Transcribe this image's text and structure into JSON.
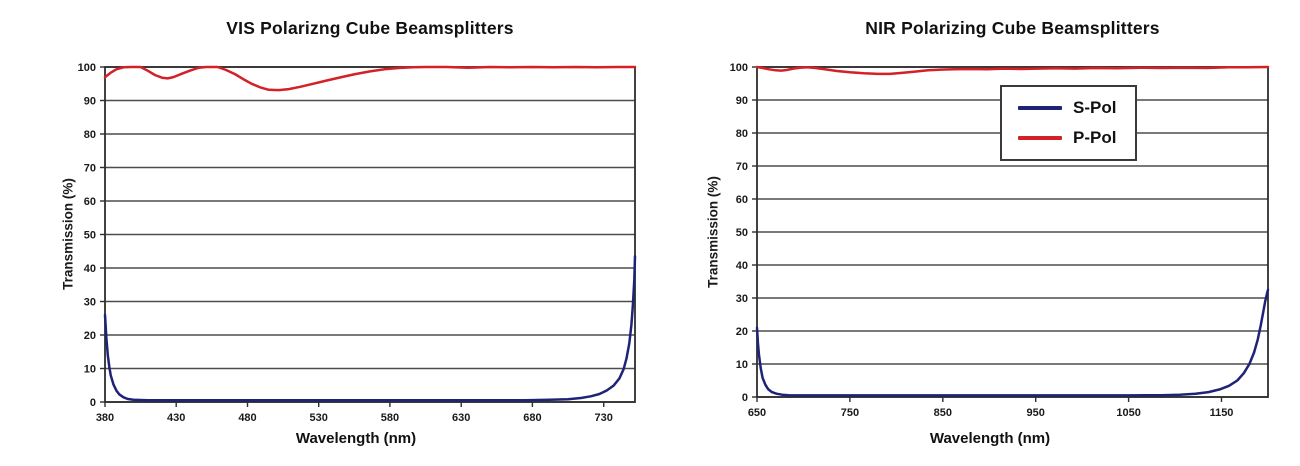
{
  "page": {
    "background": "#ffffff"
  },
  "chart_data": [
    {
      "type": "line",
      "title": "VIS Polarizng Cube Beamsplitters",
      "xlabel": "Wavelength (nm)",
      "ylabel": "Transmission (%)",
      "xlim": [
        380,
        752
      ],
      "ylim": [
        0,
        100
      ],
      "xticks": [
        380,
        430,
        480,
        530,
        580,
        630,
        680,
        730
      ],
      "yticks": [
        0,
        10,
        20,
        30,
        40,
        50,
        60,
        70,
        80,
        90,
        100
      ],
      "grid": "horizontal-only",
      "legend": "none",
      "series": [
        {
          "name": "S-Pol",
          "color": "#1f2377",
          "points": [
            [
              380,
              26
            ],
            [
              381,
              19
            ],
            [
              382,
              14
            ],
            [
              383,
              10.5
            ],
            [
              384,
              8
            ],
            [
              386,
              5.2
            ],
            [
              388,
              3.4
            ],
            [
              390,
              2.3
            ],
            [
              393,
              1.4
            ],
            [
              396,
              0.9
            ],
            [
              400,
              0.7
            ],
            [
              410,
              0.55
            ],
            [
              440,
              0.5
            ],
            [
              480,
              0.5
            ],
            [
              520,
              0.5
            ],
            [
              560,
              0.5
            ],
            [
              600,
              0.5
            ],
            [
              640,
              0.5
            ],
            [
              675,
              0.55
            ],
            [
              692,
              0.65
            ],
            [
              705,
              0.85
            ],
            [
              714,
              1.2
            ],
            [
              721,
              1.7
            ],
            [
              727,
              2.4
            ],
            [
              732,
              3.4
            ],
            [
              737,
              4.9
            ],
            [
              741,
              7
            ],
            [
              744,
              9.8
            ],
            [
              746,
              13
            ],
            [
              748,
              17.5
            ],
            [
              749.5,
              23
            ],
            [
              750.5,
              29
            ],
            [
              751.5,
              36.5
            ],
            [
              752,
              43.5
            ]
          ]
        },
        {
          "name": "P-Pol",
          "color": "#d42027",
          "points": [
            [
              380,
              97
            ],
            [
              384,
              98.3
            ],
            [
              388,
              99.3
            ],
            [
              393,
              99.9
            ],
            [
              398,
              100
            ],
            [
              405,
              100
            ],
            [
              410,
              98.9
            ],
            [
              415,
              97.6
            ],
            [
              420,
              96.8
            ],
            [
              424,
              96.6
            ],
            [
              428,
              97
            ],
            [
              434,
              98
            ],
            [
              440,
              99
            ],
            [
              446,
              99.8
            ],
            [
              451,
              100
            ],
            [
              459,
              100
            ],
            [
              465,
              99.1
            ],
            [
              471,
              97.9
            ],
            [
              477,
              96.4
            ],
            [
              483,
              95
            ],
            [
              489,
              93.9
            ],
            [
              495,
              93.2
            ],
            [
              502,
              93.1
            ],
            [
              509,
              93.4
            ],
            [
              517,
              94.1
            ],
            [
              526,
              95
            ],
            [
              536,
              96
            ],
            [
              546,
              97
            ],
            [
              556,
              97.9
            ],
            [
              566,
              98.7
            ],
            [
              576,
              99.3
            ],
            [
              586,
              99.7
            ],
            [
              596,
              99.9
            ],
            [
              605,
              100
            ],
            [
              620,
              100
            ],
            [
              635,
              99.8
            ],
            [
              650,
              100
            ],
            [
              665,
              99.9
            ],
            [
              680,
              100
            ],
            [
              695,
              99.9
            ],
            [
              710,
              100
            ],
            [
              725,
              99.9
            ],
            [
              740,
              100
            ],
            [
              752,
              100
            ]
          ]
        }
      ]
    },
    {
      "type": "line",
      "title": "NIR Polarizing Cube Beamsplitters",
      "xlabel": "Wavelength (nm)",
      "ylabel": "Transmission (%)",
      "xlim": [
        650,
        1200
      ],
      "ylim": [
        0,
        100
      ],
      "xticks": [
        650,
        750,
        850,
        950,
        1050,
        1150
      ],
      "yticks": [
        0,
        10,
        20,
        30,
        40,
        50,
        60,
        70,
        80,
        90,
        100
      ],
      "grid": "horizontal-only",
      "legend": "top-right-inside",
      "series": [
        {
          "name": "S-Pol",
          "color": "#1f2377",
          "points": [
            [
              650,
              21
            ],
            [
              651,
              16.5
            ],
            [
              652,
              13
            ],
            [
              654,
              8.8
            ],
            [
              656,
              5.8
            ],
            [
              659,
              3.7
            ],
            [
              662,
              2.4
            ],
            [
              666,
              1.5
            ],
            [
              671,
              1
            ],
            [
              677,
              0.7
            ],
            [
              684,
              0.55
            ],
            [
              700,
              0.5
            ],
            [
              750,
              0.5
            ],
            [
              800,
              0.5
            ],
            [
              850,
              0.5
            ],
            [
              900,
              0.5
            ],
            [
              950,
              0.5
            ],
            [
              1000,
              0.5
            ],
            [
              1050,
              0.5
            ],
            [
              1085,
              0.55
            ],
            [
              1105,
              0.7
            ],
            [
              1122,
              1
            ],
            [
              1136,
              1.5
            ],
            [
              1148,
              2.3
            ],
            [
              1158,
              3.4
            ],
            [
              1167,
              5
            ],
            [
              1174,
              7.2
            ],
            [
              1180,
              10
            ],
            [
              1185,
              13.5
            ],
            [
              1189,
              17.5
            ],
            [
              1192,
              21.5
            ],
            [
              1195,
              26
            ],
            [
              1197,
              29
            ],
            [
              1199,
              31.5
            ],
            [
              1200,
              32.5
            ]
          ]
        },
        {
          "name": "P-Pol",
          "color": "#d42027",
          "points": [
            [
              650,
              100
            ],
            [
              656,
              99.7
            ],
            [
              663,
              99.3
            ],
            [
              670,
              99
            ],
            [
              676,
              98.9
            ],
            [
              682,
              99.1
            ],
            [
              689,
              99.5
            ],
            [
              696,
              99.8
            ],
            [
              704,
              99.9
            ],
            [
              713,
              99.7
            ],
            [
              723,
              99.3
            ],
            [
              736,
              98.8
            ],
            [
              750,
              98.4
            ],
            [
              765,
              98.1
            ],
            [
              780,
              97.9
            ],
            [
              793,
              97.9
            ],
            [
              806,
              98.2
            ],
            [
              820,
              98.6
            ],
            [
              834,
              99
            ],
            [
              848,
              99.2
            ],
            [
              862,
              99.3
            ],
            [
              880,
              99.4
            ],
            [
              898,
              99.3
            ],
            [
              916,
              99.5
            ],
            [
              934,
              99.4
            ],
            [
              952,
              99.5
            ],
            [
              972,
              99.6
            ],
            [
              992,
              99.5
            ],
            [
              1014,
              99.7
            ],
            [
              1038,
              99.6
            ],
            [
              1062,
              99.8
            ],
            [
              1086,
              99.7
            ],
            [
              1110,
              99.8
            ],
            [
              1134,
              99.7
            ],
            [
              1158,
              99.9
            ],
            [
              1178,
              99.9
            ],
            [
              1200,
              100
            ]
          ]
        }
      ]
    }
  ]
}
